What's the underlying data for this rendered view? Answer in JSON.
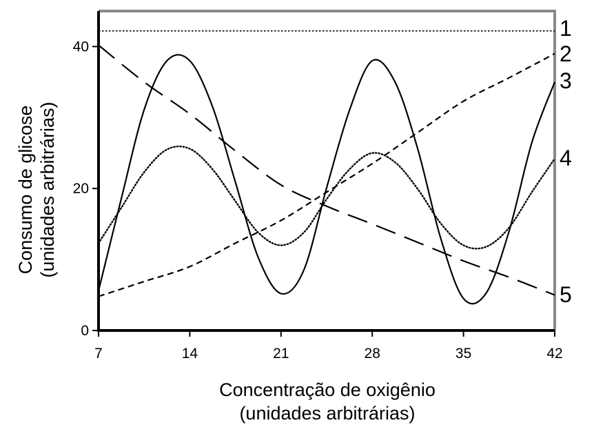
{
  "chart_data": {
    "type": "line",
    "xlabel_lines": [
      "Concentração de oxigênio",
      "(unidades arbitrárias)"
    ],
    "ylabel_lines": [
      "Consumo de glicose",
      "(unidades arbitrárias)"
    ],
    "xlim": [
      7,
      42
    ],
    "ylim": [
      0,
      45
    ],
    "x_ticks": [
      7,
      14,
      21,
      28,
      35,
      42
    ],
    "x_tick_labels": [
      "7",
      "14",
      "21",
      "28",
      "35",
      "42"
    ],
    "y_ticks": [
      0,
      20,
      40
    ],
    "y_tick_labels": [
      "0",
      "20",
      "40"
    ],
    "grid": false,
    "legend": "none",
    "series": [
      {
        "name": "1",
        "style": "fine-dotted",
        "x": [
          7,
          42
        ],
        "y": [
          42.2,
          42.2
        ]
      },
      {
        "name": "2",
        "style": "short-dashed",
        "x": [
          7,
          10.5,
          14,
          17.5,
          21,
          24.5,
          28,
          31.5,
          35,
          38.5,
          42
        ],
        "y": [
          4.8,
          6.9,
          9.0,
          12.3,
          15.5,
          19.5,
          23.5,
          27.9,
          32.3,
          35.6,
          39.0
        ]
      },
      {
        "name": "3",
        "style": "solid",
        "x": [
          7,
          8.75,
          10.5,
          12.25,
          14,
          15.75,
          17.5,
          19.25,
          21,
          22.75,
          24.5,
          26.25,
          28,
          29.75,
          31.5,
          33.25,
          35,
          36.75,
          38.5,
          40.25,
          42
        ],
        "y": [
          5.6,
          18.6,
          31.1,
          38.0,
          38.0,
          31.5,
          20.9,
          10.3,
          5.2,
          8.5,
          20.1,
          31.0,
          38.0,
          35.0,
          25.5,
          13.0,
          4.5,
          5.3,
          14.0,
          26.5,
          35.0
        ]
      },
      {
        "name": "4",
        "style": "dotted",
        "x": [
          7,
          8.75,
          10.5,
          12.25,
          14,
          15.75,
          17.5,
          19.25,
          21,
          22.75,
          24.5,
          26.25,
          28,
          29.75,
          31.5,
          33.25,
          35,
          36.75,
          38.5,
          40.25,
          42
        ],
        "y": [
          12.3,
          17.3,
          22.3,
          25.5,
          25.6,
          22.7,
          18.2,
          13.8,
          12.0,
          13.8,
          18.5,
          22.7,
          25.0,
          23.7,
          19.9,
          15.1,
          12.0,
          11.8,
          14.5,
          19.5,
          24.2
        ]
      },
      {
        "name": "5",
        "style": "long-dashed",
        "x": [
          7,
          10.5,
          14,
          17.5,
          21,
          24.5,
          28,
          31.5,
          35,
          38.5,
          42
        ],
        "y": [
          40.2,
          35.0,
          30.5,
          25.3,
          20.5,
          17.5,
          15.0,
          12.4,
          9.8,
          7.5,
          5.0
        ]
      }
    ]
  }
}
